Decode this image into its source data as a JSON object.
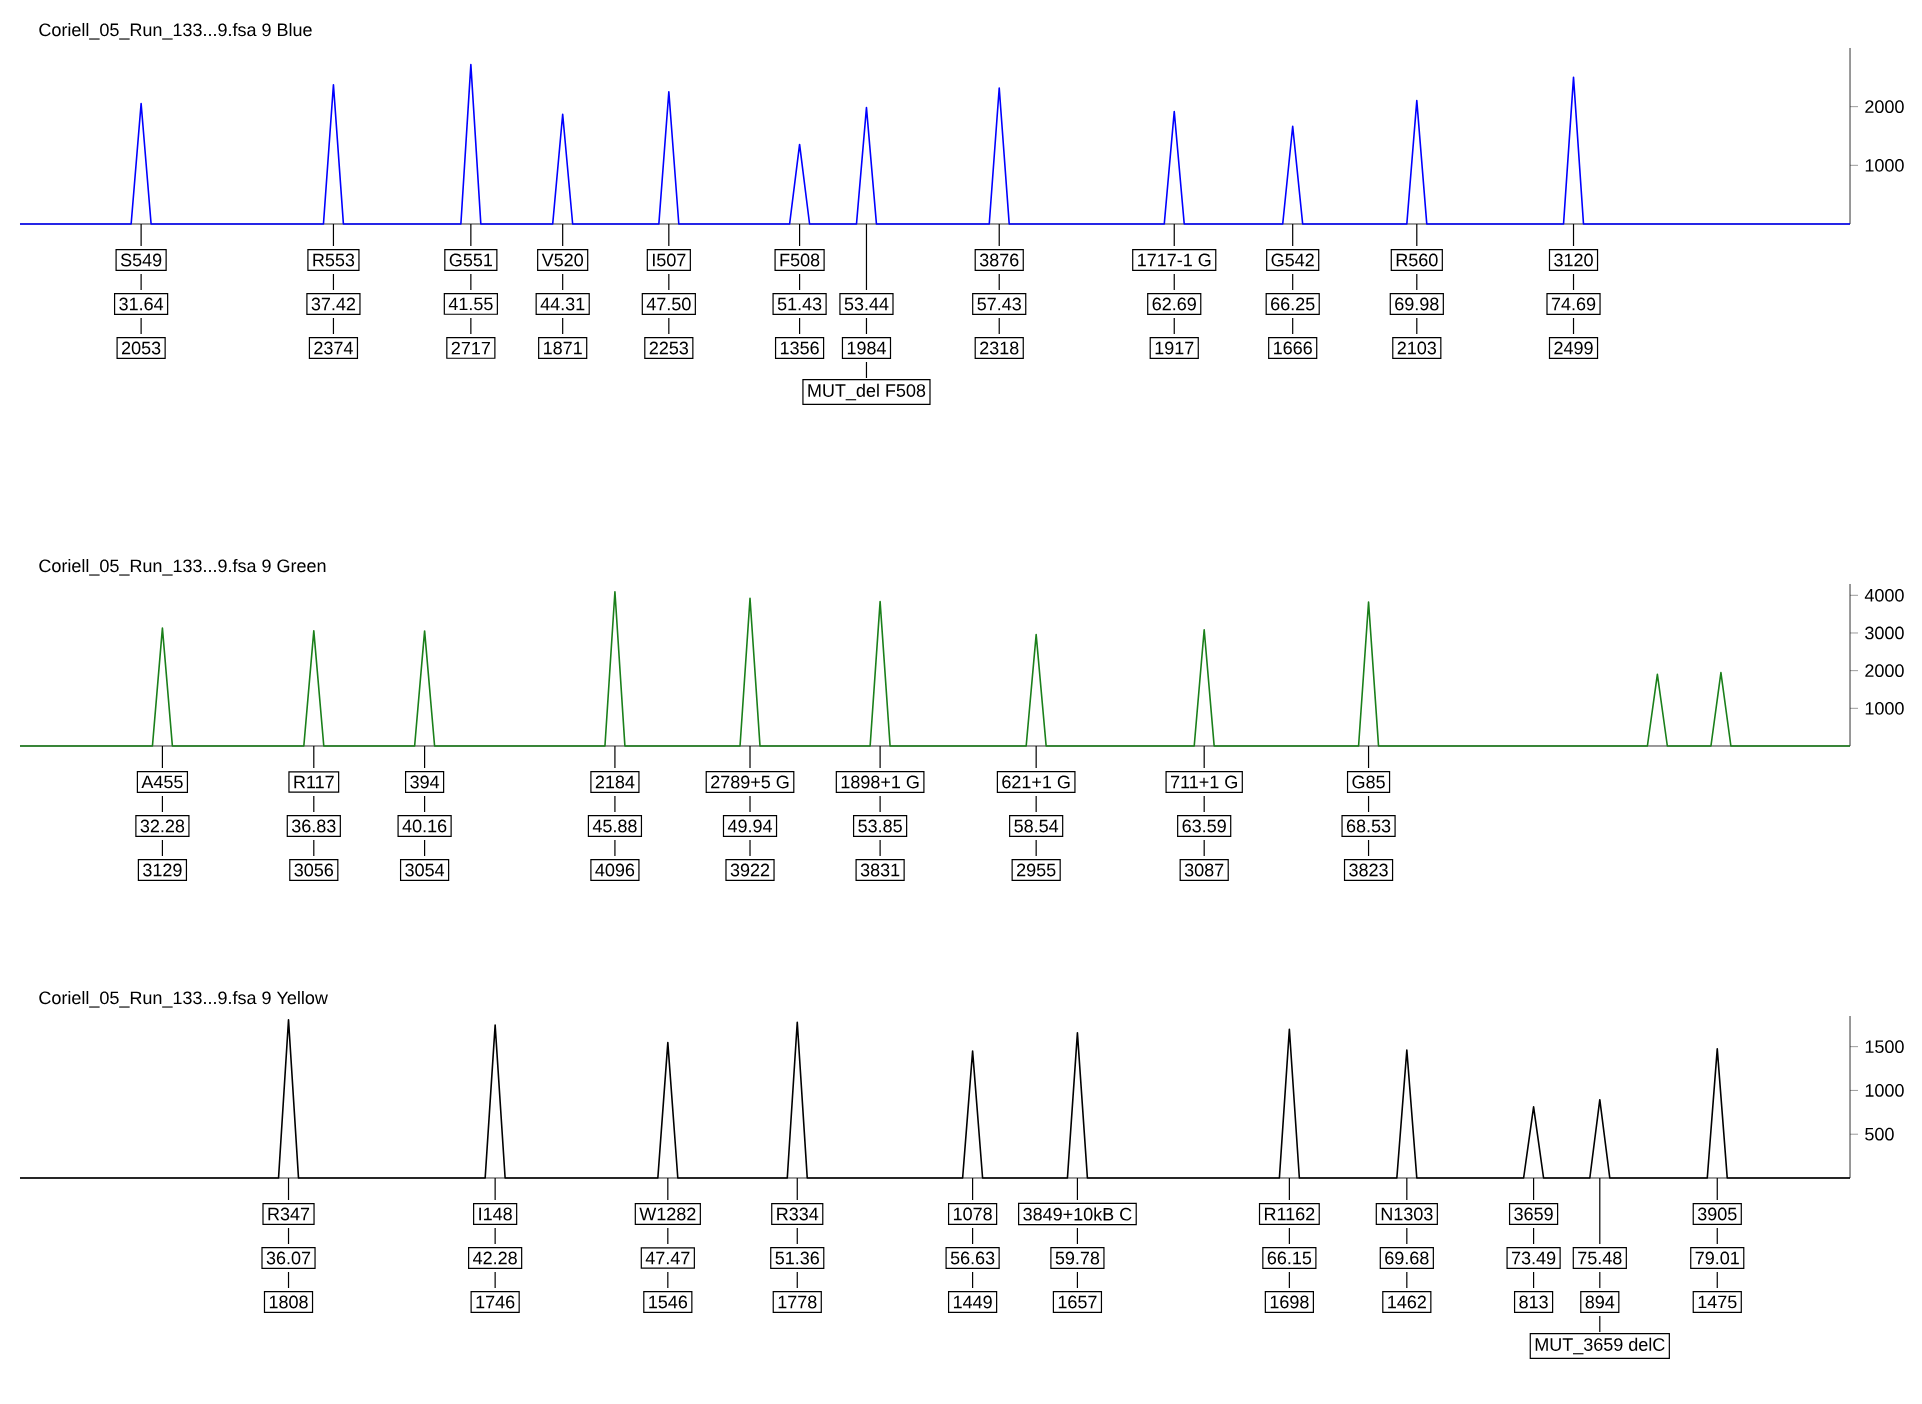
{
  "chart_data": [
    {
      "type": "line",
      "title": "Coriell_05_Run_133...9.fsa  9 Blue",
      "xlim": [
        28,
        83
      ],
      "ylim": [
        0,
        3000
      ],
      "yticks": [
        1000,
        2000
      ],
      "xticks": [
        31.64,
        37.42,
        41.55,
        44.31,
        {
          "value": 47.5,
          "label": "47.50"
        },
        51.43,
        53.44,
        57.43,
        62.69,
        66.25,
        69.98,
        74.69
      ],
      "x": [
        28,
        31.34,
        31.64,
        31.94,
        37.12,
        37.42,
        37.72,
        41.25,
        41.55,
        41.85,
        44.01,
        44.31,
        44.61,
        47.2,
        47.5,
        47.8,
        51.13,
        51.43,
        51.73,
        53.14,
        53.44,
        53.74,
        57.13,
        57.43,
        57.73,
        62.39,
        62.69,
        62.99,
        65.95,
        66.25,
        66.55,
        69.68,
        69.98,
        70.28,
        74.39,
        74.69,
        74.99,
        83
      ],
      "series": [
        {
          "color": "#0000ff",
          "values": [
            0,
            0,
            2053,
            0,
            0,
            2374,
            0,
            0,
            2717,
            0,
            0,
            1871,
            0,
            0,
            2253,
            0,
            0,
            1356,
            0,
            0,
            1984,
            0,
            0,
            2318,
            0,
            0,
            1917,
            0,
            0,
            1666,
            0,
            0,
            2103,
            0,
            0,
            2499,
            0,
            0
          ]
        }
      ],
      "annotations": [
        "S549",
        "R553",
        "G551",
        "V520",
        "I507",
        "F508",
        "MUT_del F508",
        "3876",
        "1717-1 G",
        "G542",
        "R560",
        "3120",
        "2053",
        "2374",
        "2717",
        "1871",
        "2253",
        "1356",
        "1984",
        "2318",
        "1917",
        "1666",
        "2103",
        "2499"
      ]
    },
    {
      "type": "line",
      "title": "Coriell_05_Run_133...9.fsa  9 Green",
      "xlim": [
        28,
        83
      ],
      "ylim": [
        0,
        4300
      ],
      "yticks": [
        1000,
        2000,
        3000,
        4000
      ],
      "xticks": [
        32.28,
        36.83,
        40.16,
        45.88,
        49.94,
        53.85,
        58.54,
        63.59,
        68.53
      ],
      "x": [
        28,
        31.98,
        32.28,
        32.58,
        36.53,
        36.83,
        37.13,
        39.86,
        40.16,
        40.46,
        45.58,
        45.88,
        46.18,
        49.64,
        49.94,
        50.24,
        53.55,
        53.85,
        54.15,
        58.24,
        58.54,
        58.84,
        63.29,
        63.59,
        63.89,
        68.23,
        68.53,
        68.83,
        76.91,
        77.21,
        77.51,
        78.82,
        79.12,
        79.42,
        83
      ],
      "series": [
        {
          "color": "#1a7f1a",
          "values": [
            0,
            0,
            3129,
            0,
            0,
            3056,
            0,
            0,
            3054,
            0,
            0,
            4096,
            0,
            0,
            3922,
            0,
            0,
            3831,
            0,
            0,
            2955,
            0,
            0,
            3087,
            0,
            0,
            3823,
            0,
            0,
            1900,
            0,
            0,
            1950,
            0,
            0
          ]
        }
      ],
      "annotations": [
        "A455",
        "R117",
        "394",
        "2184",
        "2789+5 G",
        "1898+1 G",
        "621+1 G",
        "711+1 G",
        "G85",
        "3129",
        "3056",
        "3054",
        "4096",
        "3922",
        "3831",
        "2955",
        "3087",
        "3823"
      ]
    },
    {
      "type": "line",
      "title": "Coriell_05_Run_133...9.fsa  9 Yellow",
      "xlim": [
        28,
        83
      ],
      "ylim": [
        0,
        1850
      ],
      "yticks": [
        500,
        1000,
        1500
      ],
      "xticks": [
        36.07,
        42.28,
        47.47,
        51.36,
        56.63,
        59.78,
        66.15,
        69.68,
        73.49,
        75.48,
        79.01
      ],
      "x": [
        28,
        35.77,
        36.07,
        36.37,
        41.98,
        42.28,
        42.58,
        47.17,
        47.47,
        47.77,
        51.06,
        51.36,
        51.66,
        56.33,
        56.63,
        56.93,
        59.48,
        59.78,
        60.08,
        65.85,
        66.15,
        66.45,
        69.38,
        69.68,
        69.98,
        73.19,
        73.49,
        73.79,
        75.18,
        75.48,
        75.78,
        78.71,
        79.01,
        79.31,
        83
      ],
      "series": [
        {
          "color": "#000000",
          "values": [
            0,
            0,
            1808,
            0,
            0,
            1746,
            0,
            0,
            1546,
            0,
            0,
            1778,
            0,
            0,
            1449,
            0,
            0,
            1657,
            0,
            0,
            1698,
            0,
            0,
            1462,
            0,
            0,
            813,
            0,
            0,
            894,
            0,
            0,
            1475,
            0,
            0
          ]
        }
      ],
      "annotations": [
        "R347",
        "I148",
        "W1282",
        "R334",
        "1078",
        "3849+10kB C",
        "R1162",
        "N1303",
        "3659",
        "MUT_3659 delC",
        "3905",
        "1808",
        "1746",
        "1546",
        "1778",
        "1449",
        "1657",
        "1698",
        "1462",
        "813",
        "894",
        "1475"
      ]
    }
  ]
}
